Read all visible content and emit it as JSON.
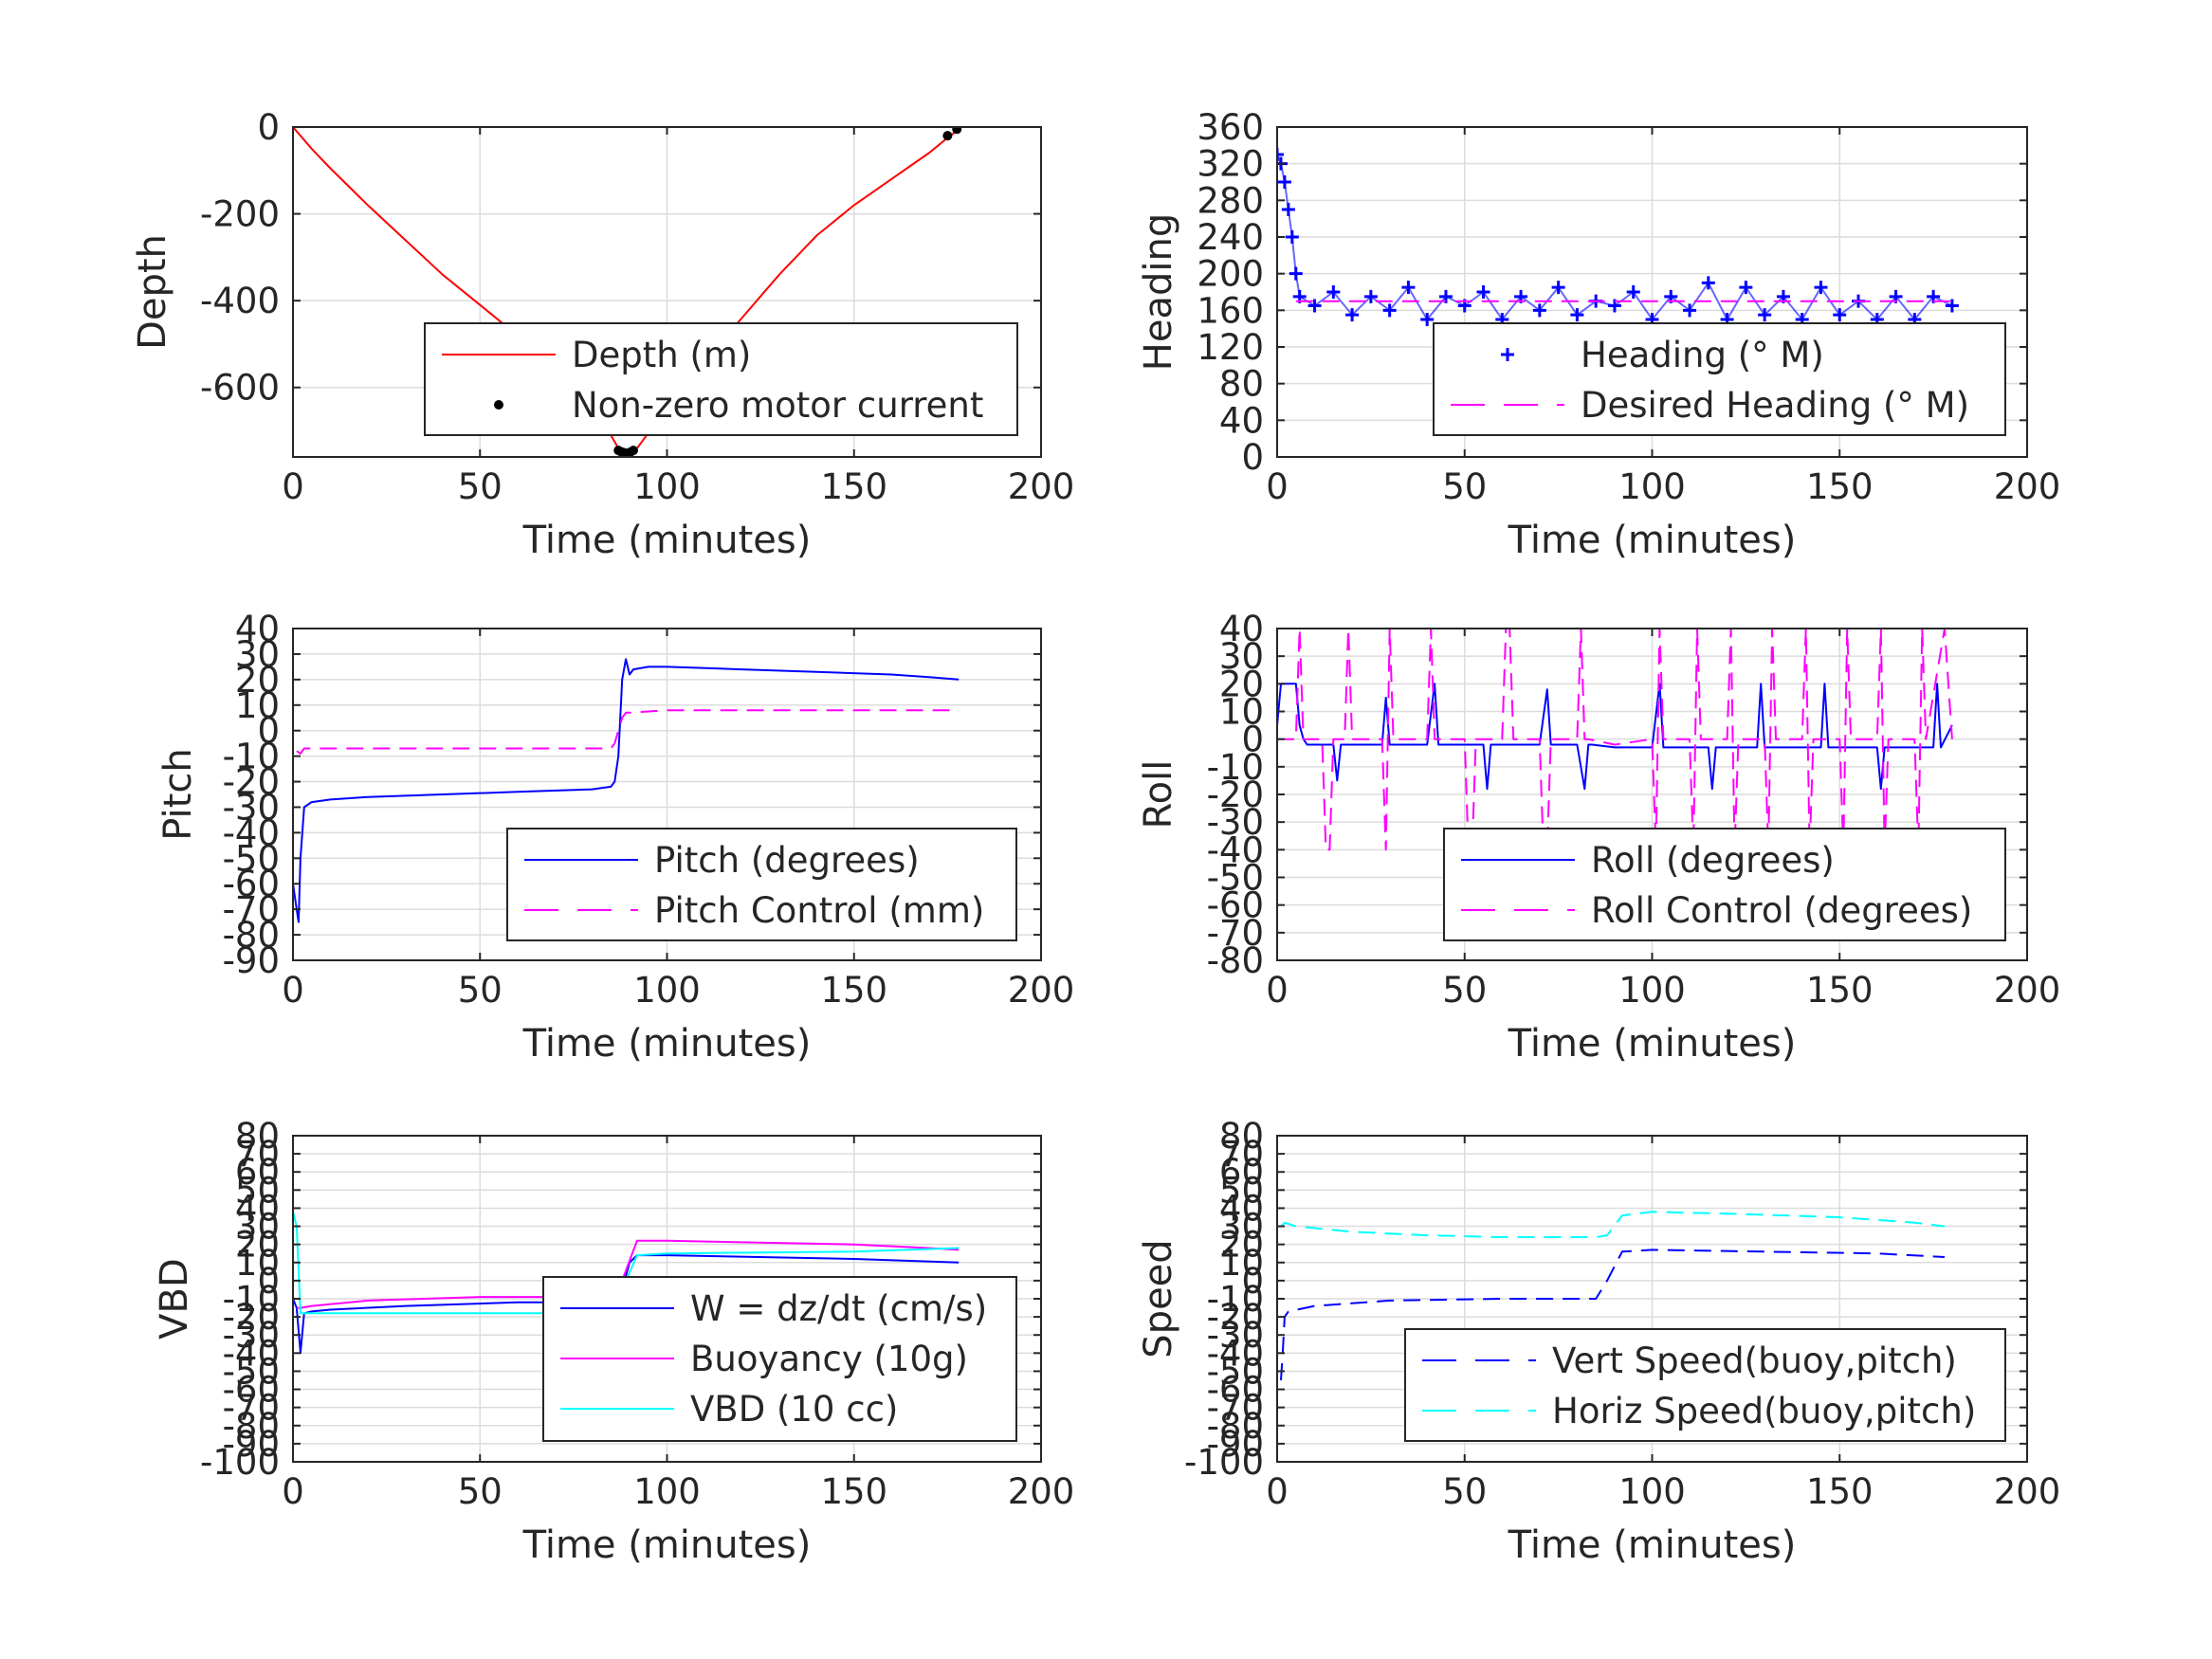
{
  "chart_data": [
    {
      "id": "depth",
      "type": "line",
      "xlabel": "Time (minutes)",
      "ylabel": "Depth",
      "xlim": [
        0,
        200
      ],
      "ylim": [
        -760,
        0
      ],
      "xticks": [
        0,
        50,
        100,
        150,
        200
      ],
      "xtick_labels": [
        "0",
        "50",
        "100",
        "150",
        "200"
      ],
      "yticks": [
        0,
        -200,
        -400,
        -600
      ],
      "ytick_labels": [
        "0",
        "-200",
        "-400",
        "-600"
      ],
      "grid": true,
      "legend": "bottom-right",
      "series": [
        {
          "name": "Depth (m)",
          "style": "line",
          "color": "#ff0000",
          "x": [
            0,
            5,
            10,
            20,
            30,
            40,
            50,
            60,
            70,
            80,
            85,
            88,
            90,
            92,
            95,
            100,
            110,
            120,
            130,
            140,
            150,
            160,
            170,
            175,
            178
          ],
          "y": [
            0,
            -50,
            -95,
            -180,
            -260,
            -340,
            -410,
            -480,
            -560,
            -650,
            -710,
            -755,
            -752,
            -740,
            -705,
            -650,
            -540,
            -440,
            -340,
            -250,
            -180,
            -120,
            -60,
            -25,
            -5
          ]
        },
        {
          "name": "Non-zero motor current",
          "style": "dots",
          "color": "#000000",
          "x": [
            87,
            87.7,
            88.4,
            89,
            89.6,
            90.2,
            91,
            175,
            177.5
          ],
          "y": [
            -745,
            -748,
            -750,
            -752,
            -751,
            -749,
            -745,
            -20,
            -5
          ]
        }
      ]
    },
    {
      "id": "heading",
      "type": "scatter",
      "xlabel": "Time (minutes)",
      "ylabel": "Heading",
      "xlim": [
        0,
        200
      ],
      "ylim": [
        0,
        360
      ],
      "xticks": [
        0,
        50,
        100,
        150,
        200
      ],
      "xtick_labels": [
        "0",
        "50",
        "100",
        "150",
        "200"
      ],
      "yticks": [
        0,
        40,
        80,
        120,
        160,
        200,
        240,
        280,
        320,
        360
      ],
      "ytick_labels": [
        "0",
        "40",
        "80",
        "120",
        "160",
        "200",
        "240",
        "280",
        "320",
        "360"
      ],
      "grid": true,
      "legend": "bottom-right",
      "series": [
        {
          "name": "Heading (° M)",
          "style": "plus",
          "color": "#0000ff",
          "x": [
            0,
            1,
            2,
            3,
            4,
            5,
            6,
            10,
            15,
            20,
            25,
            30,
            35,
            40,
            45,
            50,
            55,
            60,
            65,
            70,
            75,
            80,
            85,
            90,
            95,
            100,
            105,
            110,
            115,
            120,
            125,
            130,
            135,
            140,
            145,
            150,
            155,
            160,
            165,
            170,
            175,
            180
          ],
          "y": [
            330,
            320,
            300,
            270,
            240,
            200,
            175,
            165,
            180,
            155,
            175,
            160,
            185,
            150,
            175,
            165,
            180,
            150,
            175,
            160,
            185,
            155,
            170,
            165,
            180,
            150,
            175,
            160,
            190,
            150,
            185,
            155,
            175,
            150,
            185,
            155,
            170,
            150,
            175,
            150,
            175,
            165
          ]
        },
        {
          "name": "Desired Heading (° M)",
          "style": "dashed",
          "color": "#ff00ff",
          "x": [
            5,
            180
          ],
          "y": [
            170,
            170
          ]
        }
      ]
    },
    {
      "id": "pitch",
      "type": "line",
      "xlabel": "Time (minutes)",
      "ylabel": "Pitch",
      "xlim": [
        0,
        200
      ],
      "ylim": [
        -90,
        40
      ],
      "xticks": [
        0,
        50,
        100,
        150,
        200
      ],
      "xtick_labels": [
        "0",
        "50",
        "100",
        "150",
        "200"
      ],
      "yticks": [
        40,
        30,
        20,
        10,
        0,
        -10,
        -20,
        -30,
        -40,
        -50,
        -60,
        -70,
        -80,
        -90
      ],
      "ytick_labels": [
        "40",
        "30",
        "20",
        "10",
        "0",
        "-10",
        "-20",
        "-30",
        "-40",
        "-50",
        "-60",
        "-70",
        "-80",
        "-90"
      ],
      "grid": true,
      "legend": "bottom-right",
      "series": [
        {
          "name": "Pitch (degrees)",
          "style": "line",
          "color": "#0000ff",
          "x": [
            0,
            1,
            1.5,
            2,
            3,
            5,
            10,
            20,
            40,
            60,
            80,
            85,
            86,
            87,
            88,
            89,
            90,
            91,
            95,
            100,
            120,
            140,
            160,
            170,
            178
          ],
          "y": [
            -60,
            -70,
            -75,
            -50,
            -30,
            -28,
            -27,
            -26,
            -25,
            -24,
            -23,
            -22,
            -20,
            -10,
            20,
            28,
            22,
            24,
            25,
            25,
            24,
            23,
            22,
            21,
            20
          ]
        },
        {
          "name": "Pitch Control (mm)",
          "style": "dashed",
          "color": "#ff00ff",
          "x": [
            1,
            2,
            3,
            10,
            50,
            85,
            86,
            87,
            88,
            89,
            90,
            100,
            150,
            178
          ],
          "y": [
            -8,
            -9,
            -7,
            -7,
            -7,
            -7,
            -5,
            0,
            5,
            7,
            7,
            8,
            8,
            8
          ]
        }
      ]
    },
    {
      "id": "roll",
      "type": "line",
      "xlabel": "Time (minutes)",
      "ylabel": "Roll",
      "xlim": [
        0,
        200
      ],
      "ylim": [
        -80,
        40
      ],
      "xticks": [
        0,
        50,
        100,
        150,
        200
      ],
      "xtick_labels": [
        "0",
        "50",
        "100",
        "150",
        "200"
      ],
      "yticks": [
        40,
        30,
        20,
        10,
        0,
        -10,
        -20,
        -30,
        -40,
        -50,
        -60,
        -70,
        -80
      ],
      "ytick_labels": [
        "40",
        "30",
        "20",
        "10",
        "0",
        "-10",
        "-20",
        "-30",
        "-40",
        "-50",
        "-60",
        "-70",
        "-80"
      ],
      "grid": true,
      "legend": "bottom-right",
      "series": [
        {
          "name": "Roll (degrees)",
          "style": "line",
          "color": "#0000ff",
          "x": [
            0,
            1,
            2,
            5,
            6,
            7,
            8,
            9,
            10,
            15,
            16,
            17,
            18,
            19,
            25,
            28,
            29,
            30,
            31,
            40,
            42,
            43,
            44,
            50,
            55,
            56,
            57,
            58,
            70,
            72,
            73,
            74,
            80,
            82,
            83,
            84,
            90,
            100,
            102,
            103,
            104,
            110,
            115,
            116,
            117,
            125,
            128,
            129,
            130,
            140,
            145,
            146,
            147,
            155,
            160,
            161,
            162,
            170,
            175,
            176,
            177,
            180
          ],
          "y": [
            5,
            20,
            20,
            20,
            5,
            0,
            -2,
            -2,
            -2,
            -2,
            -15,
            -2,
            -2,
            -2,
            -2,
            -2,
            15,
            -2,
            -2,
            -2,
            20,
            -2,
            -2,
            -2,
            -2,
            -18,
            -2,
            -2,
            -2,
            18,
            -2,
            -2,
            -2,
            -18,
            -2,
            -2,
            -3,
            -3,
            20,
            -3,
            -3,
            -3,
            -3,
            -18,
            -3,
            -3,
            -3,
            20,
            -3,
            -3,
            -3,
            20,
            -3,
            -3,
            -3,
            -18,
            -3,
            -3,
            -3,
            20,
            -3,
            5
          ]
        },
        {
          "name": "Roll Control (degrees)",
          "style": "dashed",
          "color": "#ff00ff",
          "x": [
            0,
            5,
            6,
            7,
            8,
            12,
            13,
            14,
            15,
            18,
            19,
            20,
            28,
            29,
            30,
            31,
            40,
            41,
            42,
            43,
            50,
            51,
            52,
            53,
            60,
            61,
            62,
            63,
            70,
            71,
            72,
            73,
            80,
            81,
            82,
            83,
            90,
            100,
            101,
            102,
            103,
            110,
            111,
            112,
            113,
            120,
            121,
            122,
            123,
            130,
            131,
            132,
            133,
            140,
            141,
            142,
            143,
            150,
            151,
            152,
            153,
            160,
            161,
            162,
            163,
            170,
            171,
            172,
            173,
            178,
            180
          ],
          "y": [
            0,
            0,
            40,
            0,
            0,
            0,
            -40,
            -40,
            0,
            0,
            40,
            0,
            0,
            -40,
            40,
            0,
            0,
            40,
            0,
            0,
            0,
            -40,
            -40,
            0,
            0,
            40,
            40,
            0,
            0,
            -40,
            -40,
            0,
            0,
            40,
            0,
            0,
            -2,
            0,
            -40,
            40,
            0,
            0,
            -40,
            40,
            0,
            0,
            40,
            -40,
            0,
            0,
            -40,
            40,
            0,
            0,
            40,
            -40,
            0,
            0,
            -40,
            40,
            0,
            0,
            40,
            -40,
            0,
            0,
            -40,
            40,
            0,
            40,
            0
          ]
        }
      ]
    },
    {
      "id": "vbd",
      "type": "line",
      "xlabel": "Time (minutes)",
      "ylabel": "VBD",
      "xlim": [
        0,
        200
      ],
      "ylim": [
        -100,
        80
      ],
      "xticks": [
        0,
        50,
        100,
        150,
        200
      ],
      "xtick_labels": [
        "0",
        "50",
        "100",
        "150",
        "200"
      ],
      "yticks": [
        80,
        70,
        60,
        50,
        40,
        30,
        20,
        10,
        0,
        -10,
        -20,
        -30,
        -40,
        -50,
        -60,
        -70,
        -80,
        -90,
        -100
      ],
      "ytick_labels": [
        "80",
        "70",
        "60",
        "50",
        "40",
        "30",
        "20",
        "10",
        "0",
        "-10",
        "-20",
        "-30",
        "-40",
        "-50",
        "-60",
        "-70",
        "-80",
        "-90",
        "-100"
      ],
      "grid": true,
      "legend": "bottom-right",
      "series": [
        {
          "name": "W = dz/dt (cm/s)",
          "style": "line",
          "color": "#0000ff",
          "x": [
            0,
            1,
            2,
            3,
            5,
            10,
            30,
            60,
            85,
            88,
            90,
            92,
            100,
            150,
            178
          ],
          "y": [
            -10,
            -15,
            -40,
            -18,
            -17,
            -16,
            -14,
            -12,
            -12,
            -5,
            10,
            14,
            14,
            12,
            10
          ]
        },
        {
          "name": "Buoyancy (10g)",
          "style": "line",
          "color": "#ff00ff",
          "x": [
            1,
            2,
            5,
            20,
            50,
            85,
            88,
            92,
            100,
            150,
            170,
            178
          ],
          "y": [
            -15,
            -15,
            -14,
            -11,
            -9,
            -9,
            0,
            22,
            22,
            20,
            18,
            17
          ]
        },
        {
          "name": "VBD (10 cc)",
          "style": "line",
          "color": "#00ffff",
          "x": [
            0,
            1,
            2,
            3,
            10,
            50,
            85,
            88,
            92,
            100,
            150,
            178
          ],
          "y": [
            38,
            30,
            -18,
            -18,
            -18,
            -18,
            -18,
            -5,
            14,
            15,
            16,
            18
          ]
        }
      ]
    },
    {
      "id": "speed",
      "type": "line",
      "xlabel": "Time (minutes)",
      "ylabel": "Speed",
      "xlim": [
        0,
        200
      ],
      "ylim": [
        -100,
        80
      ],
      "xticks": [
        0,
        50,
        100,
        150,
        200
      ],
      "xtick_labels": [
        "0",
        "50",
        "100",
        "150",
        "200"
      ],
      "yticks": [
        80,
        70,
        60,
        50,
        40,
        30,
        20,
        10,
        0,
        -10,
        -20,
        -30,
        -40,
        -50,
        -60,
        -70,
        -80,
        -90,
        -100
      ],
      "ytick_labels": [
        "80",
        "70",
        "60",
        "50",
        "40",
        "30",
        "20",
        "10",
        "0",
        "-10",
        "-20",
        "-30",
        "-40",
        "-50",
        "-60",
        "-70",
        "-80",
        "-90",
        "-100"
      ],
      "grid": true,
      "legend": "bottom-right",
      "series": [
        {
          "name": "Vert Speed(buoy,pitch)",
          "style": "dashed",
          "color": "#0000ff",
          "x": [
            1,
            1.5,
            2,
            3,
            10,
            30,
            60,
            85,
            88,
            92,
            100,
            130,
            160,
            178
          ],
          "y": [
            -55,
            -40,
            -20,
            -17,
            -14,
            -11,
            -10,
            -10,
            0,
            16,
            17,
            16,
            15,
            13
          ]
        },
        {
          "name": "Horiz Speed(buoy,pitch)",
          "style": "dashed",
          "color": "#00ffff",
          "x": [
            1,
            2,
            5,
            20,
            40,
            60,
            85,
            88,
            92,
            100,
            120,
            150,
            170,
            178
          ],
          "y": [
            30,
            32,
            30,
            27,
            25,
            24,
            24,
            25,
            36,
            38,
            37,
            35,
            32,
            30
          ]
        }
      ]
    }
  ]
}
